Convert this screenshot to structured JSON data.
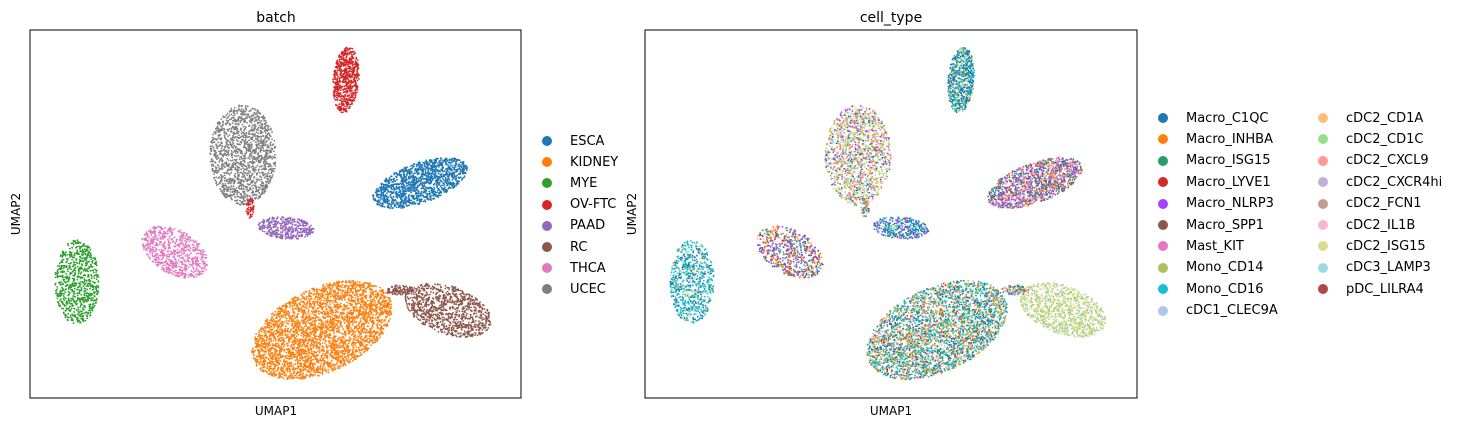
{
  "chart_data": [
    {
      "type": "scatter",
      "title": "batch",
      "xlabel": "UMAP1",
      "ylabel": "UMAP2",
      "xticks": false,
      "yticks": false,
      "grid": false,
      "legend_position": "right",
      "legend": [
        {
          "name": "ESCA",
          "color": "#1f77b4"
        },
        {
          "name": "KIDNEY",
          "color": "#ff7f0e"
        },
        {
          "name": "MYE",
          "color": "#2ca02c"
        },
        {
          "name": "OV-FTC",
          "color": "#d62728"
        },
        {
          "name": "PAAD",
          "color": "#9467bd"
        },
        {
          "name": "RC",
          "color": "#8c564b"
        },
        {
          "name": "THCA",
          "color": "#e377c2"
        },
        {
          "name": "UCEC",
          "color": "#7f7f7f"
        }
      ]
    },
    {
      "type": "scatter",
      "title": "cell_type",
      "xlabel": "UMAP1",
      "ylabel": "UMAP2",
      "xticks": false,
      "yticks": false,
      "grid": false,
      "legend_position": "right",
      "legend_columns": 2,
      "legend": [
        {
          "name": "Macro_C1QC",
          "color": "#1f77b4"
        },
        {
          "name": "Macro_INHBA",
          "color": "#ff7f0e"
        },
        {
          "name": "Macro_ISG15",
          "color": "#279e68"
        },
        {
          "name": "Macro_LYVE1",
          "color": "#d62728"
        },
        {
          "name": "Macro_NLRP3",
          "color": "#aa40fc"
        },
        {
          "name": "Macro_SPP1",
          "color": "#8c564b"
        },
        {
          "name": "Mast_KIT",
          "color": "#e377c2"
        },
        {
          "name": "Mono_CD14",
          "color": "#b5bd61"
        },
        {
          "name": "Mono_CD16",
          "color": "#17becf"
        },
        {
          "name": "cDC1_CLEC9A",
          "color": "#aec7e8"
        },
        {
          "name": "cDC2_CD1A",
          "color": "#ffbb78"
        },
        {
          "name": "cDC2_CD1C",
          "color": "#98df8a"
        },
        {
          "name": "cDC2_CXCL9",
          "color": "#ff9896"
        },
        {
          "name": "cDC2_CXCR4hi",
          "color": "#c5b0d5"
        },
        {
          "name": "cDC2_FCN1",
          "color": "#c49c94"
        },
        {
          "name": "cDC2_IL1B",
          "color": "#f7b6d2"
        },
        {
          "name": "cDC2_ISG15",
          "color": "#dbdb8d"
        },
        {
          "name": "cDC3_LAMP3",
          "color": "#9edae5"
        },
        {
          "name": "pDC_LILRA4",
          "color": "#ad494a"
        }
      ]
    }
  ]
}
